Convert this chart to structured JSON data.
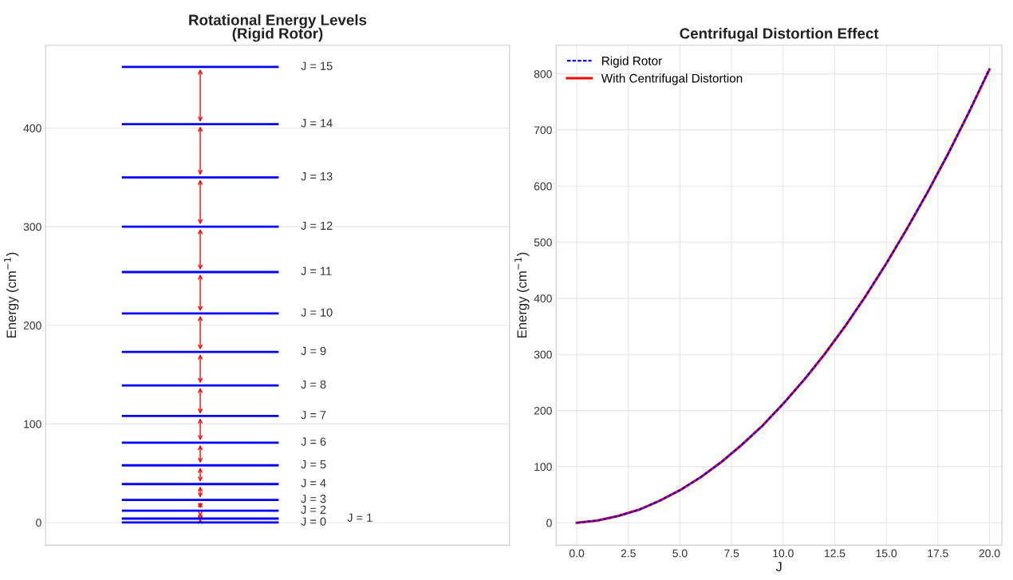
{
  "chart_data": [
    {
      "type": "line",
      "title": "Rotational Energy Levels\n(Rigid Rotor)",
      "ylabel": "Energy (cm$^{−1}$)",
      "ylim": [
        -23,
        484
      ],
      "yticks": [
        0,
        100,
        200,
        300,
        400
      ],
      "grid": "y",
      "tick_labels": "y",
      "categories": [
        null,
        null,
        null
      ],
      "series": [
        {
          "name": "J = 0",
          "color": "#0000ff",
          "values": [
            0,
            0,
            null
          ]
        },
        {
          "name": "J = 1",
          "color": "#0000ff",
          "values": [
            4,
            4,
            null
          ]
        },
        {
          "name": "J = 2",
          "color": "#0000ff",
          "values": [
            12,
            12,
            null
          ]
        },
        {
          "name": "J = 3",
          "color": "#0000ff",
          "values": [
            23,
            23,
            null
          ]
        },
        {
          "name": "J = 4",
          "color": "#0000ff",
          "values": [
            39,
            39,
            null
          ]
        },
        {
          "name": "J = 5",
          "color": "#0000ff",
          "values": [
            58,
            58,
            null
          ]
        },
        {
          "name": "J = 6",
          "color": "#0000ff",
          "values": [
            81,
            81,
            null
          ]
        },
        {
          "name": "J = 7",
          "color": "#0000ff",
          "values": [
            108,
            108,
            null
          ]
        },
        {
          "name": "J = 8",
          "color": "#0000ff",
          "values": [
            139,
            139,
            null
          ]
        },
        {
          "name": "J = 9",
          "color": "#0000ff",
          "values": [
            173,
            173,
            null
          ]
        },
        {
          "name": "J = 10",
          "color": "#0000ff",
          "values": [
            212,
            212,
            null
          ]
        },
        {
          "name": "J = 11",
          "color": "#0000ff",
          "values": [
            254,
            254,
            null
          ]
        },
        {
          "name": "J = 12",
          "color": "#0000ff",
          "values": [
            300,
            300,
            null
          ]
        },
        {
          "name": "J = 13",
          "color": "#0000ff",
          "values": [
            350,
            350,
            null
          ]
        },
        {
          "name": "J = 14",
          "color": "#0000ff",
          "values": [
            404,
            404,
            null
          ]
        },
        {
          "name": "J = 15",
          "color": "#0000ff",
          "values": [
            462,
            462,
            null
          ]
        }
      ]
    },
    {
      "type": "line",
      "title": "Centrifugal Distortion Effect",
      "xlabel": "J",
      "ylabel": "Energy (cm$^{−1}$)",
      "xlim": [
        -1,
        20.6
      ],
      "ylim": [
        -40,
        851
      ],
      "xticks": [
        {
          "value": 0,
          "label": "0.0"
        },
        2.5,
        {
          "value": 5,
          "label": "5.0"
        },
        7.5,
        {
          "value": 10,
          "label": "10.0"
        },
        12.5,
        {
          "value": 15,
          "label": "15.0"
        },
        17.5,
        {
          "value": 20,
          "label": "20.0"
        }
      ],
      "yticks": [
        0,
        100,
        200,
        300,
        400,
        500,
        600,
        700,
        800
      ],
      "grid": true,
      "legend": "top left",
      "x": [
        0,
        1,
        2,
        3,
        4,
        5,
        6,
        7,
        8,
        9,
        10,
        11,
        12,
        13,
        14,
        15,
        16,
        17,
        18,
        19,
        20
      ],
      "series": [
        {
          "name": "Rigid Rotor",
          "color": "#0000ff",
          "line_style": "dashed",
          "values": [
            0,
            4,
            12,
            23,
            39,
            58,
            81,
            108,
            139,
            173,
            212,
            254,
            300,
            350,
            404,
            462,
            524,
            589,
            658,
            732,
            809
          ]
        },
        {
          "name": "With Centrifugal Distortion",
          "color": "#ff0000",
          "line_style": "solid",
          "values": [
            0,
            4,
            12,
            23,
            39,
            58,
            81,
            108,
            139,
            173,
            212,
            254,
            300,
            350,
            404,
            462,
            524,
            589,
            658,
            731,
            808
          ]
        }
      ]
    }
  ]
}
